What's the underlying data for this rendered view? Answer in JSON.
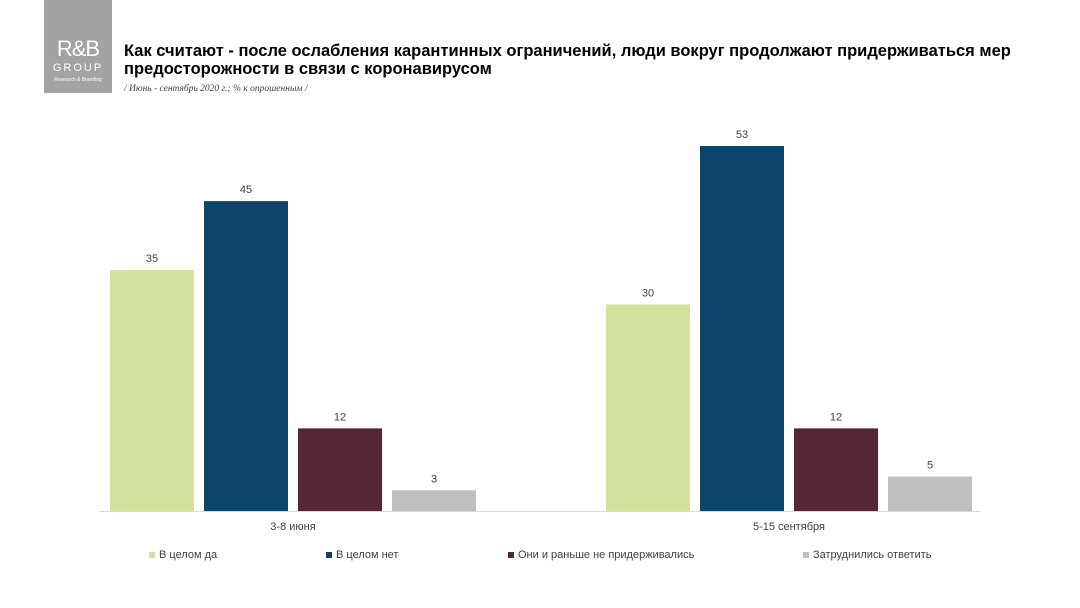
{
  "logo": {
    "line1": "R&B",
    "line2": "GROUP",
    "line3": "Research & Branding"
  },
  "header": {
    "title": "Как считают - после ослабления карантинных ограничений, люди вокруг продолжают придерживаться мер предосторожности в связи с коронавирусом",
    "subtitle": "/ Июнь - сентябрь 2020 г.; % к опрошенным /"
  },
  "colors": [
    "#d2e29c",
    "#0b466a",
    "#562637",
    "#bfbfbf"
  ],
  "chart_data": {
    "type": "bar",
    "categories": [
      "3-8 июня",
      "5-15 сентября"
    ],
    "series": [
      {
        "name": "В целом да",
        "values": [
          35,
          30
        ]
      },
      {
        "name": "В целом нет",
        "values": [
          45,
          53
        ]
      },
      {
        "name": "Они и раньше не придерживались",
        "values": [
          12,
          12
        ]
      },
      {
        "name": "Затруднились ответить",
        "values": [
          3,
          5
        ]
      }
    ],
    "title": "Как считают - после ослабления карантинных ограничений, люди вокруг продолжают придерживаться мер предосторожности в связи с коронавирусом",
    "subtitle": "/ Июнь - сентябрь 2020 г.; % к опрошенным /",
    "ylim": [
      0,
      53
    ],
    "grid": false,
    "legend_position": "bottom"
  }
}
